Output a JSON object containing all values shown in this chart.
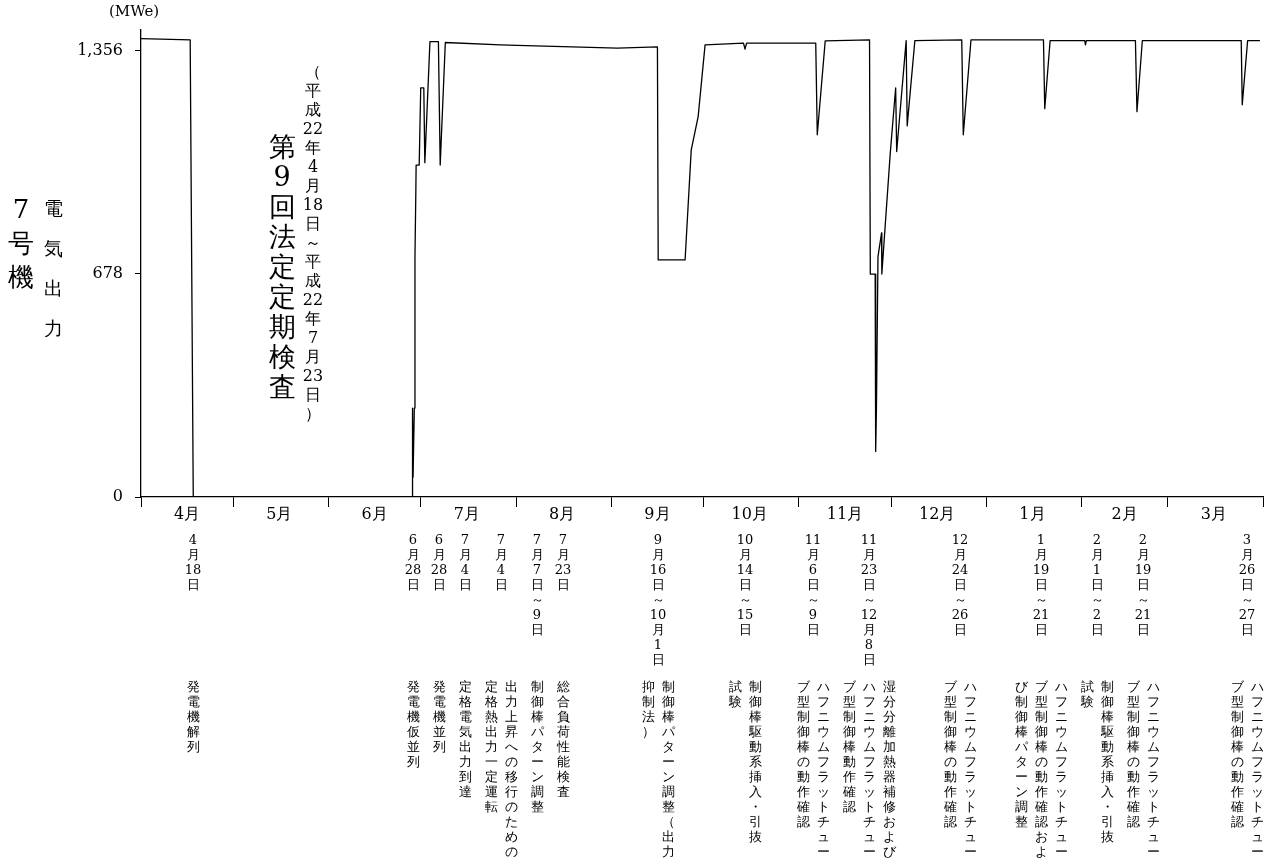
{
  "chart_data": {
    "type": "line",
    "title": "7号機",
    "ylabel": "電気出力",
    "legend": false,
    "grid": false,
    "marker": "none",
    "line_style": "solid",
    "xlim": [
      "2010-04-01",
      "2011-04-01"
    ],
    "xticks": [
      {
        "value": "2010-04-01",
        "label": null
      },
      {
        "value": "2010-04-16",
        "label": "4月"
      },
      {
        "value": "2010-05-01",
        "label": null
      },
      {
        "value": "2010-05-16",
        "label": "5月"
      },
      {
        "value": "2010-06-01",
        "label": null
      },
      {
        "value": "2010-06-16",
        "label": "6月"
      },
      {
        "value": "2010-07-01",
        "label": null
      },
      {
        "value": "2010-07-16",
        "label": "7月"
      },
      {
        "value": "2010-08-01",
        "label": null
      },
      {
        "value": "2010-08-16",
        "label": "8月"
      },
      {
        "value": "2010-09-01",
        "label": null
      },
      {
        "value": "2010-09-16",
        "label": "9月"
      },
      {
        "value": "2010-10-01",
        "label": null
      },
      {
        "value": "2010-10-16",
        "label": "10月"
      },
      {
        "value": "2010-11-01",
        "label": null
      },
      {
        "value": "2010-11-16",
        "label": "11月"
      },
      {
        "value": "2010-12-01",
        "label": null
      },
      {
        "value": "2010-12-16",
        "label": "12月"
      },
      {
        "value": "2011-01-01",
        "label": null
      },
      {
        "value": "2011-01-16",
        "label": "1月"
      },
      {
        "value": "2011-02-01",
        "label": null
      },
      {
        "value": "2011-02-15",
        "label": "2月"
      },
      {
        "value": "2011-03-01",
        "label": null
      },
      {
        "value": "2011-03-16",
        "label": "3月"
      },
      {
        "value": "2011-04-01",
        "label": null
      }
    ],
    "ylim": [
      0,
      1418
    ],
    "yticks": [
      0,
      678,
      {
        "value": 1356,
        "label": "1,356"
      }
    ],
    "series": [
      {
        "color": "#000000",
        "x": [
          "2010-04-01",
          "2010-04-17",
          "2010-04-18",
          "2010-06-28T06:00",
          "2010-06-28T08:00",
          "2010-06-28T12:00",
          "2010-06-28T22:00",
          "2010-06-29T03:00",
          "2010-06-29T10:00",
          "2010-06-29T12:00",
          "2010-06-30T12:00",
          "2010-07-01",
          "2010-07-02",
          "2010-07-02T08:00",
          "2010-07-04",
          "2010-07-06T18:00",
          "2010-07-07T08:00",
          "2010-07-09",
          "2010-07-27",
          "2010-09-03",
          "2010-09-16",
          "2010-09-16T06:00",
          "2010-09-25",
          "2010-09-27",
          "2010-09-29T06:00",
          "2010-10-01T12:00",
          "2010-10-14",
          "2010-10-14T12:00",
          "2010-10-15",
          "2010-11-06T12:00",
          "2010-11-07",
          "2010-11-09T14:00",
          "2010-11-24",
          "2010-11-24T06:00",
          "2010-11-25T20:00",
          "2010-11-26",
          "2010-11-26T06:00",
          "2010-11-26T18:00",
          "2010-11-27T22:00",
          "2010-11-28",
          "2010-11-30T18:00",
          "2010-12-02T12:00",
          "2010-12-02T20:00",
          "2010-12-05T22:00",
          "2010-12-06T06:00",
          "2010-12-08T18:00",
          "2010-12-24",
          "2010-12-24T12:00",
          "2010-12-27",
          "2011-01-19T14:00",
          "2011-01-20",
          "2011-01-21T18:00",
          "2011-02-02",
          "2011-02-02T06:00",
          "2011-02-02T12:00",
          "2011-02-18T12:00",
          "2011-02-19",
          "2011-02-20T18:00",
          "2011-03-24T22:00",
          "2011-03-25T06:00",
          "2011-03-27",
          "2011-03-31"
        ],
        "values": [
          1392,
          1388,
          0,
          0,
          270,
          60,
          270,
          729,
          933,
          1008,
          1008,
          1242,
          1242,
          1015,
          1383,
          1383,
          1008,
          1380,
          1373,
          1363,
          1367,
          720,
          720,
          1054,
          1155,
          1373,
          1378,
          1360,
          1378,
          1378,
          1100,
          1385,
          1388,
          677,
          677,
          138,
          270,
          730,
          802,
          677,
          1045,
          1242,
          1049,
          1386,
          1127,
          1386,
          1388,
          1100,
          1388,
          1388,
          1179,
          1386,
          1386,
          1373,
          1386,
          1386,
          1170,
          1386,
          1386,
          1191,
          1386,
          1386
        ]
      }
    ],
    "annotations": [
      "(MWe)",
      "第9回法定定期検査",
      "（平成22年4月18日～平成22年7月23日）",
      "4月18日",
      "発電機解列",
      "6月28日",
      "発電機仮並列",
      "6月28日",
      "発電機並列",
      "7月4日",
      "定格電気出力到達",
      "7月4日",
      "出力上昇への移行のための定格熱出力一定運転",
      "7月7日～9日",
      "制御棒パターン調整",
      "7月23日",
      "総合負荷性能検査",
      "9月16日～10月1日",
      "制御棒パターン調整（出力抑制法）",
      "10月14日～15日",
      "制御棒駆動系挿入・引抜試験",
      "11月6日～9日",
      "ハフニウムフラットチューブ型制御棒の動作確認",
      "11月23日～12月8日",
      "湿分分離加熱器補修およびハフニウムフラットチューブ型制御棒動作確認",
      "12月24日～26日",
      "ハフニウムフラットチューブ型制御棒の動作確認",
      "1月19日～21日",
      "ハフニウムフラットチューブ型制御棒の動作確認および制御棒パターン調整",
      "2月1日～2日",
      "制御棒駆動系挿入・引抜試験",
      "2月19日～21日",
      "ハフニウムフラットチューブ型制御棒の動作確認",
      "3月26日～27日",
      "ハフニウムフラットチューブ型制御棒の動作確認"
    ]
  }
}
